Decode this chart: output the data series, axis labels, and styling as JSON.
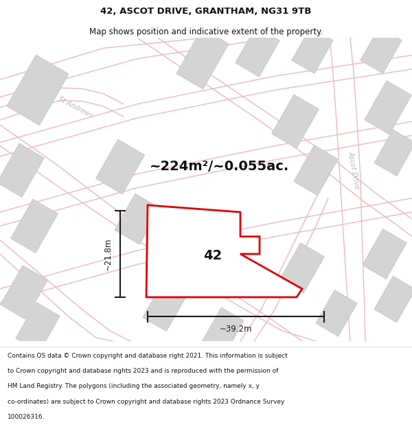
{
  "title": "42, ASCOT DRIVE, GRANTHAM, NG31 9TB",
  "subtitle": "Map shows position and indicative extent of the property.",
  "footer_lines": [
    "Contains OS data © Crown copyright and database right 2021. This information is subject",
    "to Crown copyright and database rights 2023 and is reproduced with the permission of",
    "HM Land Registry. The polygons (including the associated geometry, namely x, y",
    "co-ordinates) are subject to Crown copyright and database rights 2023 Ordnance Survey",
    "100026316."
  ],
  "area_label": "~224m²/~0.055ac.",
  "width_label": "~39.2m",
  "height_label": "~21.8m",
  "property_number": "42",
  "bg_color": "#ffffff",
  "map_bg": "#efefef",
  "road_color": "#f0b8b8",
  "building_color": "#d4d4d4",
  "building_edge": "#c0c0c0",
  "road_label_color": "#b8b8b8",
  "property_outline_color": "#dd0000",
  "property_fill": "#ffffff",
  "dim_color": "#1a1a1a",
  "title_color": "#111111",
  "footer_color": "#111111",
  "separator_color": "#dddddd",
  "title_fontsize": 9.5,
  "subtitle_fontsize": 8.5,
  "area_fontsize": 14,
  "footer_fontsize": 6.5,
  "dim_fontsize": 8.5,
  "prop_label_fontsize": 14,
  "road_label_fontsize": 7
}
